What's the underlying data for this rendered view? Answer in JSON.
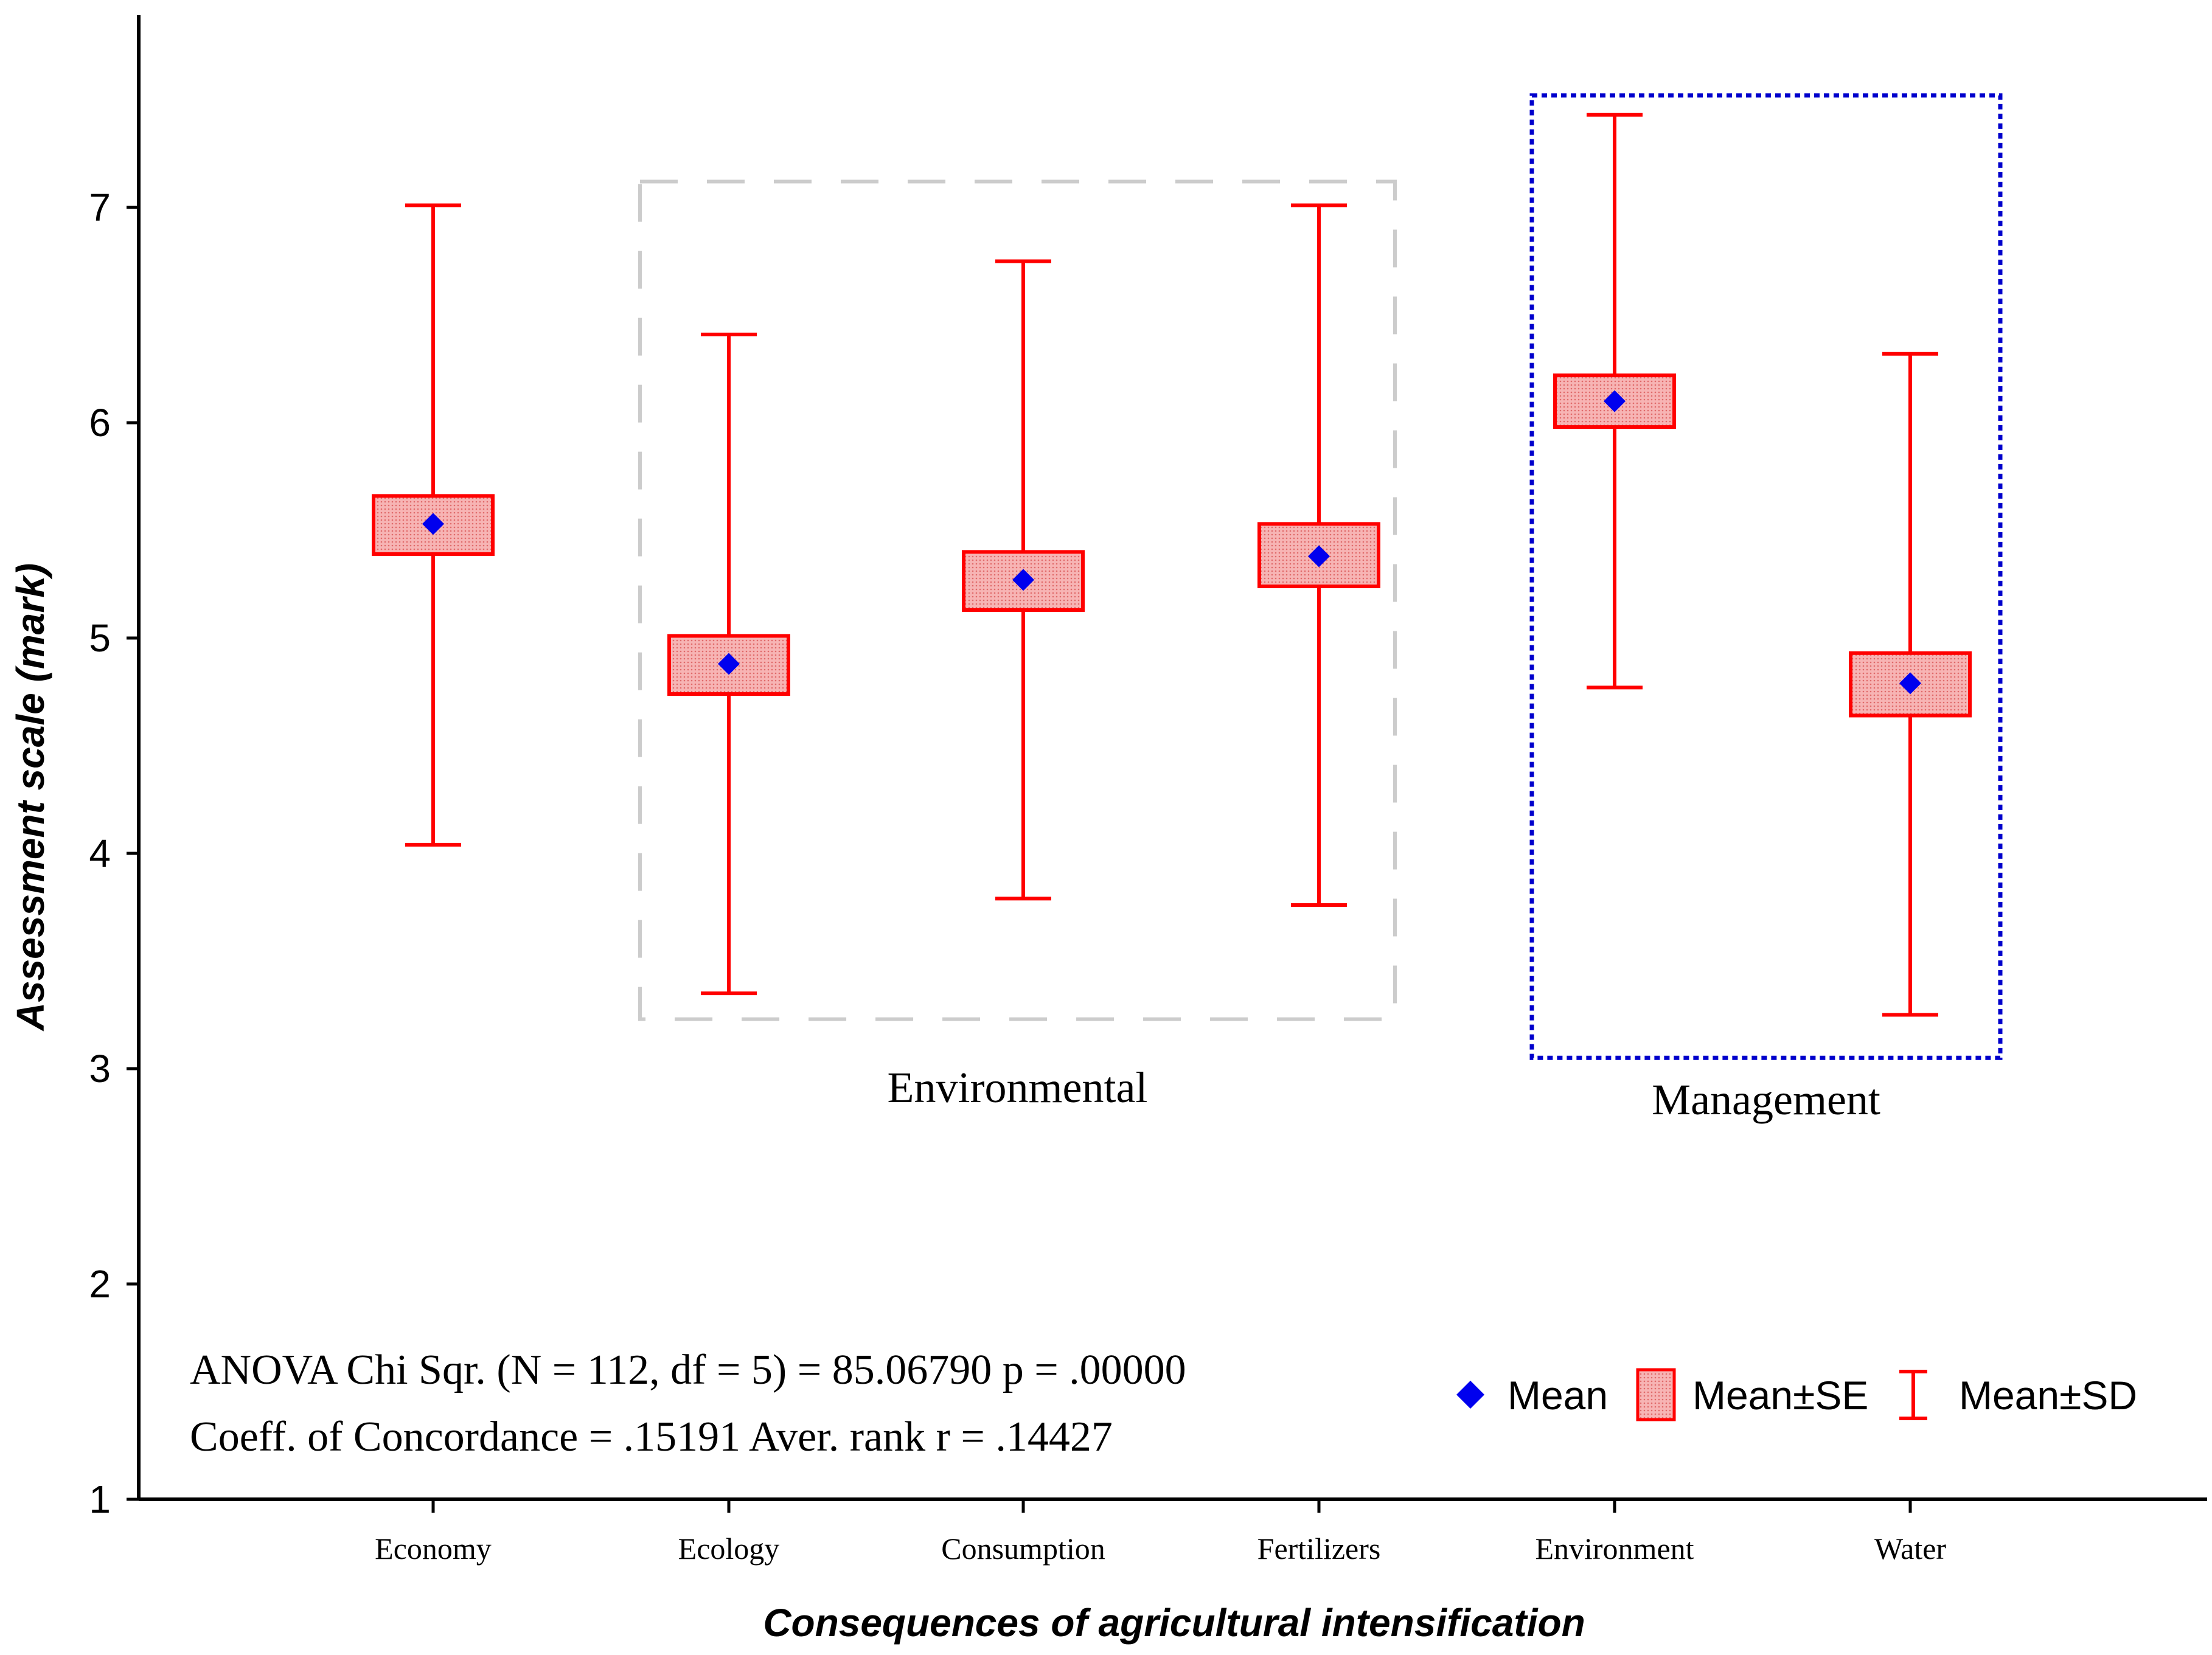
{
  "chart_data": {
    "type": "box",
    "xlabel": "Consequences of agricultural intensification",
    "ylabel": "Assessment scale (mark)",
    "ylim": [
      1,
      7.5
    ],
    "yticks": [
      1,
      2,
      3,
      4,
      5,
      6,
      7
    ],
    "categories": [
      "Economy",
      "Ecology",
      "Consumption",
      "Fertilizers",
      "Environment",
      "Water"
    ],
    "series": [
      {
        "name": "Mean",
        "values": [
          5.53,
          4.88,
          5.27,
          5.38,
          6.1,
          4.79
        ]
      },
      {
        "name": "Mean±SE",
        "lower": [
          5.39,
          4.74,
          5.13,
          5.24,
          5.98,
          4.64
        ],
        "upper": [
          5.66,
          5.01,
          5.4,
          5.53,
          6.22,
          4.93
        ]
      },
      {
        "name": "Mean±SD",
        "lower": [
          4.04,
          3.35,
          3.79,
          3.76,
          4.77,
          3.25
        ],
        "upper": [
          7.01,
          6.41,
          6.75,
          7.01,
          7.43,
          6.32
        ]
      }
    ],
    "groups": [
      {
        "label": "Environmental",
        "categories": [
          "Ecology",
          "Consumption",
          "Fertilizers"
        ],
        "style": "dashed",
        "color": "#cccccc"
      },
      {
        "label": "Management",
        "categories": [
          "Environment",
          "Water"
        ],
        "style": "dotted",
        "color": "#0000cc"
      }
    ],
    "annotations": [
      "ANOVA Chi Sqr. (N = 112, df = 5) = 85.06790 p = .00000",
      "Coeff. of Concordance = .15191 Aver. rank r = .14427"
    ],
    "legend": [
      "Mean",
      "Mean±SE",
      "Mean±SD"
    ],
    "legend_position": "bottom-right",
    "grid": false,
    "colors": {
      "mean": "#0000ee",
      "box_fill": "#f4a6a6",
      "box_stroke": "#ff0000",
      "whisker": "#ff0000",
      "axis": "#000000"
    }
  }
}
